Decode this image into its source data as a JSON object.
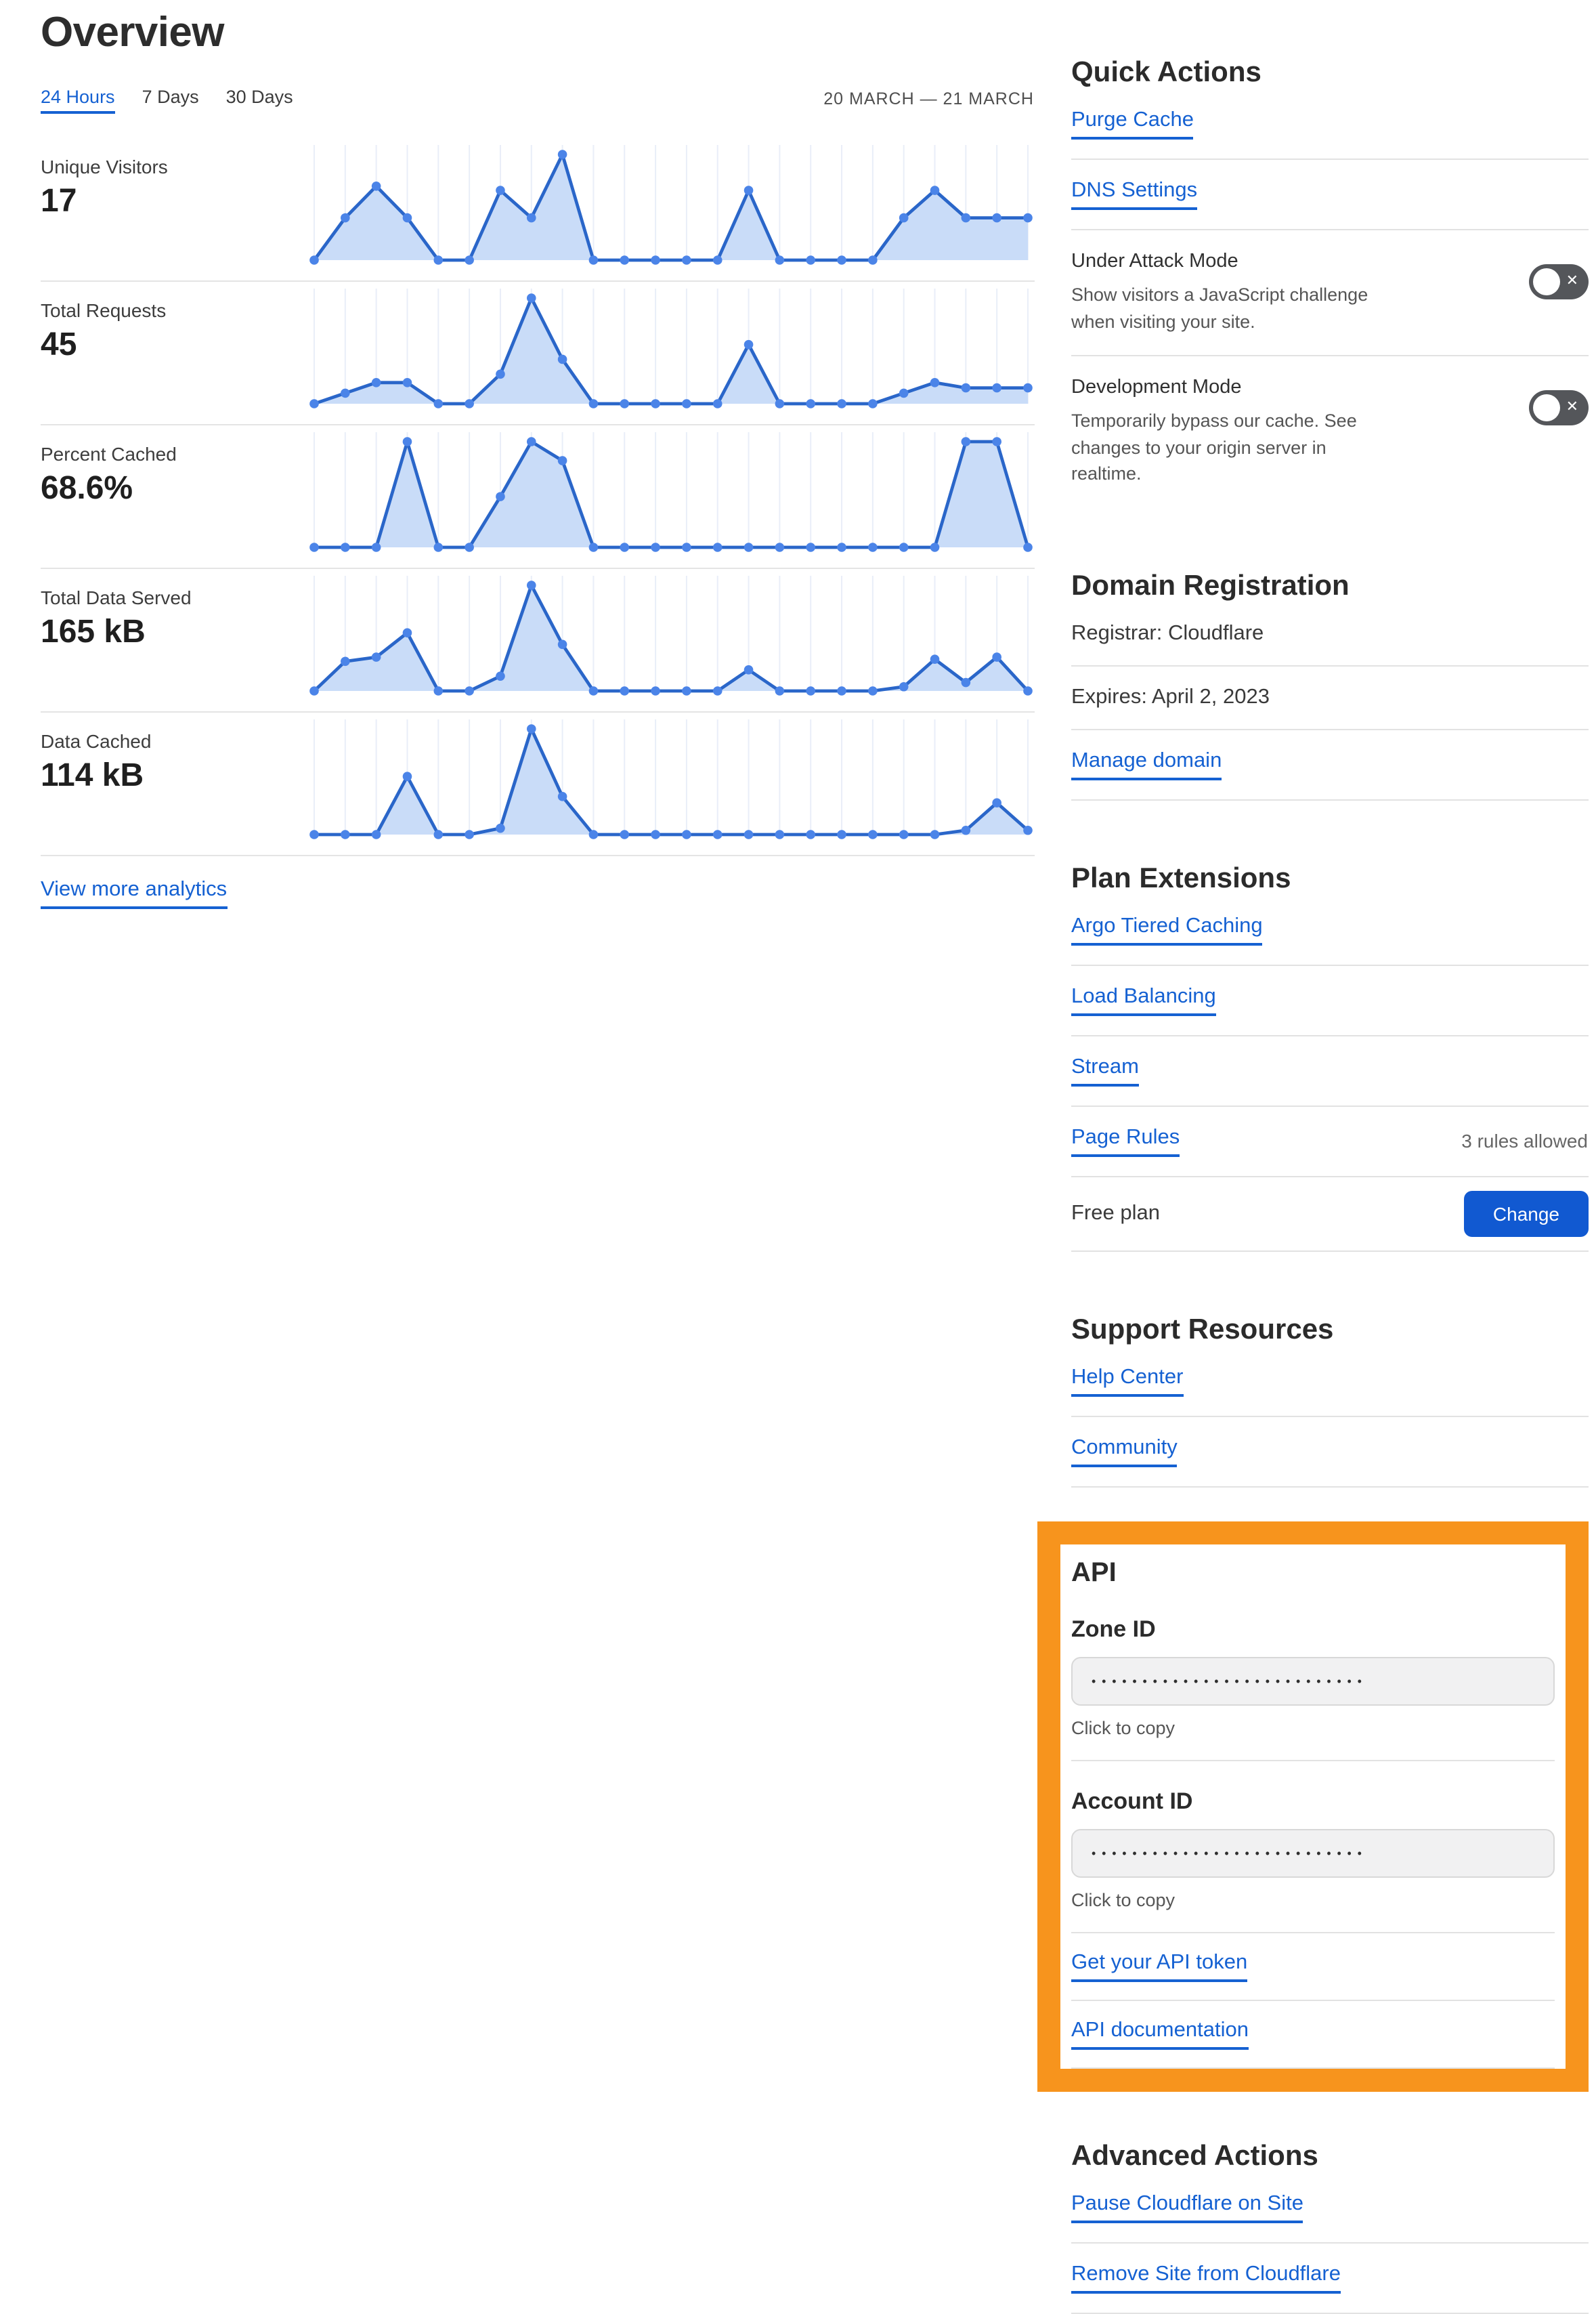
{
  "page": {
    "title": "Overview",
    "date_range": "20 MARCH — 21 MARCH",
    "view_more": "View more analytics"
  },
  "tabs": [
    {
      "label": "24 Hours",
      "active": true
    },
    {
      "label": "7 Days",
      "active": false
    },
    {
      "label": "30 Days",
      "active": false
    }
  ],
  "colors": {
    "link_blue": "#1561d2",
    "button_blue": "#1159d1",
    "highlight_orange": "#f7941d",
    "chart_line": "#2a66c9",
    "chart_dot": "#4b84e8",
    "chart_fill": "#c9dcf8",
    "chart_grid": "#e9eef8",
    "toggle_gray": "#54565a"
  },
  "chart_data": [
    {
      "type": "area",
      "title": "Unique Visitors",
      "value": "17",
      "x_hours": 24,
      "ylim": [
        0,
        100
      ],
      "grid": "vertical",
      "legend": "none",
      "values": [
        0,
        40,
        70,
        40,
        0,
        0,
        66,
        40,
        100,
        0,
        0,
        0,
        0,
        0,
        66,
        0,
        0,
        0,
        0,
        40,
        66,
        40,
        40,
        40
      ]
    },
    {
      "type": "area",
      "title": "Total Requests",
      "value": "45",
      "x_hours": 24,
      "ylim": [
        0,
        100
      ],
      "grid": "vertical",
      "legend": "none",
      "values": [
        0,
        10,
        20,
        20,
        0,
        0,
        28,
        100,
        42,
        0,
        0,
        0,
        0,
        0,
        56,
        0,
        0,
        0,
        0,
        10,
        20,
        15,
        15,
        15
      ]
    },
    {
      "type": "area",
      "title": "Percent Cached",
      "value": "68.6%",
      "x_hours": 24,
      "ylim": [
        0,
        100
      ],
      "grid": "vertical",
      "legend": "none",
      "values": [
        0,
        0,
        0,
        100,
        0,
        0,
        48,
        100,
        82,
        0,
        0,
        0,
        0,
        0,
        0,
        0,
        0,
        0,
        0,
        0,
        0,
        100,
        100,
        0
      ]
    },
    {
      "type": "area",
      "title": "Total Data Served",
      "value": "165 kB",
      "x_hours": 24,
      "ylim": [
        0,
        100
      ],
      "grid": "vertical",
      "legend": "none",
      "values": [
        0,
        28,
        32,
        55,
        0,
        0,
        14,
        100,
        44,
        0,
        0,
        0,
        0,
        0,
        20,
        0,
        0,
        0,
        0,
        4,
        30,
        8,
        32,
        0
      ]
    },
    {
      "type": "area",
      "title": "Data Cached",
      "value": "114 kB",
      "x_hours": 24,
      "ylim": [
        0,
        100
      ],
      "grid": "vertical",
      "legend": "none",
      "values": [
        0,
        0,
        0,
        55,
        0,
        0,
        6,
        100,
        36,
        0,
        0,
        0,
        0,
        0,
        0,
        0,
        0,
        0,
        0,
        0,
        0,
        4,
        30,
        4
      ]
    }
  ],
  "quick_actions": {
    "heading": "Quick Actions",
    "purge_cache": "Purge Cache",
    "dns_settings": "DNS Settings",
    "under_attack": {
      "title": "Under Attack Mode",
      "description": "Show visitors a JavaScript challenge when visiting your site.",
      "state": "off"
    },
    "dev_mode": {
      "title": "Development Mode",
      "description": "Temporarily bypass our cache. See changes to your origin server in realtime.",
      "state": "off"
    }
  },
  "domain_registration": {
    "heading": "Domain Registration",
    "registrar": "Registrar: Cloudflare",
    "expires": "Expires: April 2, 2023",
    "manage": "Manage domain"
  },
  "plan_extensions": {
    "heading": "Plan Extensions",
    "argo": "Argo Tiered Caching",
    "load_balancing": "Load Balancing",
    "stream": "Stream",
    "page_rules": "Page Rules",
    "page_rules_note": "3 rules allowed",
    "plan_label": "Free plan",
    "change_button": "Change"
  },
  "support_resources": {
    "heading": "Support Resources",
    "help_center": "Help Center",
    "community": "Community"
  },
  "api": {
    "heading": "API",
    "zone_id_label": "Zone ID",
    "zone_id_masked": "•••••••••••••••••••••••••••",
    "zone_copy_hint": "Click to copy",
    "account_id_label": "Account ID",
    "account_id_masked": "•••••••••••••••••••••••••••",
    "account_copy_hint": "Click to copy",
    "get_token": "Get your API token",
    "documentation": "API documentation"
  },
  "advanced_actions": {
    "heading": "Advanced Actions",
    "pause": "Pause Cloudflare on Site",
    "remove": "Remove Site from Cloudflare"
  }
}
